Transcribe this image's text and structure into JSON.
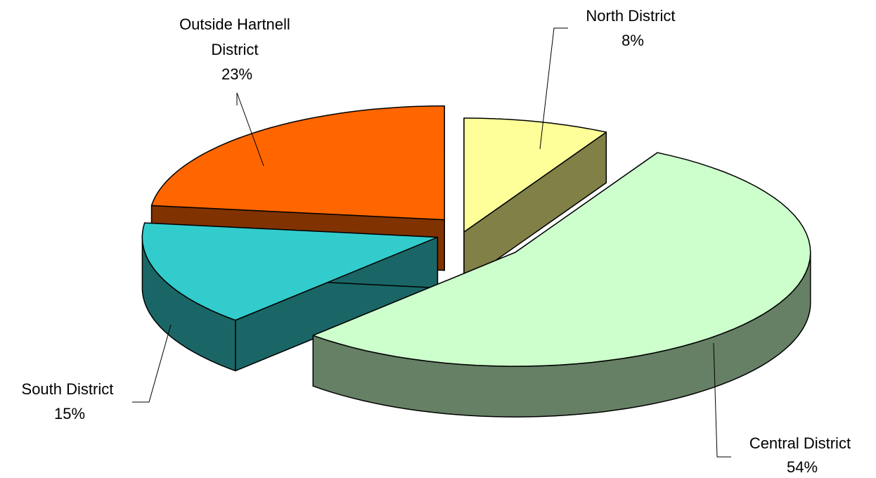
{
  "chart_data": {
    "type": "pie",
    "style": "3d-exploded",
    "slices": [
      {
        "name": "North District",
        "value": 8,
        "percent_label": "8%",
        "colors": {
          "top": "#ffff99",
          "side": "#808047"
        }
      },
      {
        "name": "Central District",
        "value": 54,
        "percent_label": "54%",
        "colors": {
          "top": "#ccffcc",
          "side": "#668066"
        }
      },
      {
        "name": "South District",
        "value": 15,
        "percent_label": "15%",
        "colors": {
          "top": "#33cccc",
          "side": "#1a6666"
        }
      },
      {
        "name": "Outside Hartnell District",
        "name_lines": [
          "Outside Hartnell",
          "District"
        ],
        "value": 23,
        "percent_label": "23%",
        "colors": {
          "top": "#ff6600",
          "side": "#803300"
        }
      }
    ],
    "legend": "none",
    "data_labels": "name-and-percent"
  }
}
